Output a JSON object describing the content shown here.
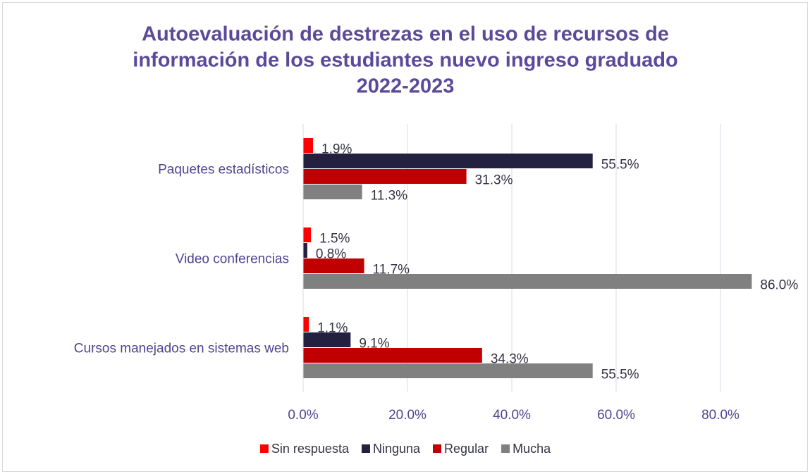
{
  "chart_data": {
    "type": "hbar",
    "title": [
      "Autoevaluación de destrezas en el uso de recursos de",
      "información de los estudiantes nuevo ingreso graduado",
      "2022-2023"
    ],
    "categories": [
      "Paquetes estadísticos",
      "Video conferencias",
      "Cursos manejados en sistemas web"
    ],
    "series": [
      {
        "name": "Sin respuesta",
        "color": "#ff0000",
        "values": [
          1.9,
          1.5,
          1.1
        ],
        "value_labels": [
          "1.9%",
          "1.5%",
          "1.1%"
        ]
      },
      {
        "name": "Ninguna",
        "color": "#24203f",
        "values": [
          55.5,
          0.8,
          9.1
        ],
        "value_labels": [
          "55.5%",
          "0.8%",
          "9.1%"
        ]
      },
      {
        "name": "Regular",
        "color": "#c00000",
        "values": [
          31.3,
          11.7,
          34.3
        ],
        "value_labels": [
          "31.3%",
          "11.7%",
          "34.3%"
        ]
      },
      {
        "name": "Mucha",
        "color": "#808080",
        "values": [
          11.3,
          86.0,
          55.5
        ],
        "value_labels": [
          "11.3%",
          "86.0%",
          "55.5%"
        ]
      }
    ],
    "xlim": [
      0,
      90
    ],
    "xticks": [
      {
        "value": 0,
        "label": "0.0%"
      },
      {
        "value": 20,
        "label": "20.0%"
      },
      {
        "value": 40,
        "label": "40.0%"
      },
      {
        "value": 60,
        "label": "60.0%"
      },
      {
        "value": 80,
        "label": "80.0%"
      }
    ],
    "grid": true,
    "legend": "bottom"
  }
}
